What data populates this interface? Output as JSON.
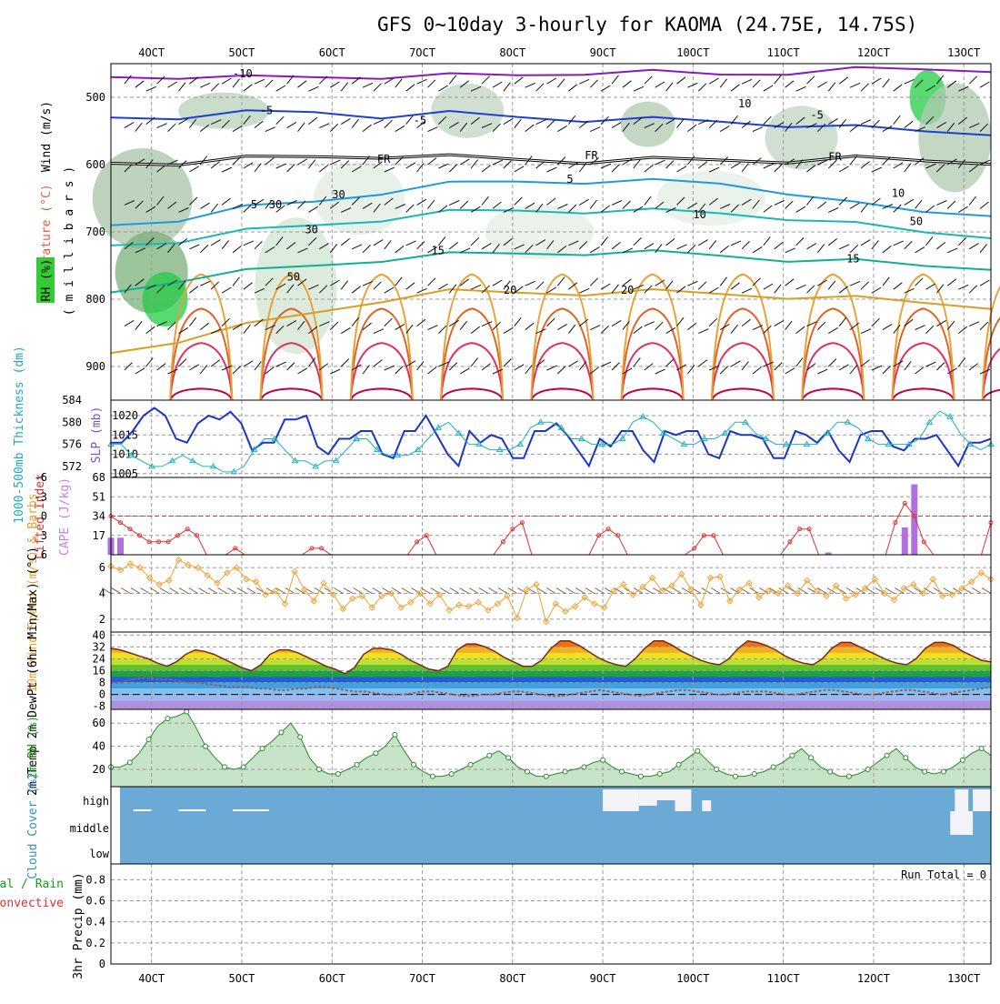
{
  "title": "GFS 0~10day 3-hourly for KAOMA (24.75E, 14.75S)",
  "time_axis": {
    "labels": [
      "4OCT",
      "5OCT",
      "6OCT",
      "7OCT",
      "8OCT",
      "9OCT",
      "10OCT",
      "11OCT",
      "12OCT",
      "13OCT"
    ],
    "start_day": 3.55,
    "end_day": 13.3
  },
  "chart_data": [
    {
      "id": "pressure_time",
      "type": "heatmap",
      "ylabel_parts": [
        "Wind (m/s)",
        "Temperature (°C)",
        "( m i l l i b a r s )",
        "RH (%)"
      ],
      "yticks": [
        500,
        600,
        700,
        800,
        900
      ],
      "ylim": [
        950,
        450
      ],
      "temperature_contour_labels": [
        "-10",
        "-5",
        "-5",
        "-5",
        "FR",
        "FR",
        "FR",
        "5",
        "5",
        "10",
        "15",
        "15",
        "20",
        "20",
        "10",
        "30",
        "30",
        "30",
        "50",
        "50",
        "10"
      ],
      "temperature_levels": [
        {
          "label": "-10",
          "color": "#8a1ab8",
          "p": [
            470,
            468,
            472,
            470,
            468,
            469,
            467,
            462,
            464,
            466,
            462,
            460,
            458,
            458
          ]
        },
        {
          "label": "-5",
          "color": "#1e3fd0",
          "p": [
            530,
            528,
            524,
            522,
            527,
            525,
            529,
            532,
            534,
            536,
            540,
            546,
            550,
            552
          ]
        },
        {
          "label": "FR",
          "color": "#000000",
          "p": [
            598,
            596,
            592,
            588,
            586,
            590,
            592,
            594,
            594,
            593,
            593,
            592,
            594,
            595
          ]
        },
        {
          "label": "5",
          "color": "#1e9bd8",
          "p": [
            690,
            680,
            665,
            655,
            640,
            630,
            625,
            624,
            626,
            628,
            640,
            660,
            670,
            672
          ]
        },
        {
          "label": "10",
          "color": "#19b8b8",
          "p": [
            720,
            712,
            700,
            690,
            680,
            672,
            668,
            668,
            670,
            672,
            678,
            690,
            700,
            705
          ]
        },
        {
          "label": "15",
          "color": "#10b090",
          "p": [
            790,
            770,
            760,
            750,
            740,
            735,
            732,
            730,
            732,
            735,
            740,
            745,
            750,
            752
          ]
        },
        {
          "label": "20",
          "color": "#d8a020",
          "p": [
            880,
            860,
            840,
            820,
            800,
            790,
            790,
            790,
            790,
            792,
            795,
            800,
            805,
            810
          ]
        }
      ],
      "rh_shading": "green"
    },
    {
      "id": "thickness_slp",
      "type": "line",
      "ylabel_left": "1000-500mb Thickness (dm)",
      "ylabel_right": "SLP (mb)",
      "yticks_left": [
        572,
        576,
        580,
        584
      ],
      "ylim_left": [
        570,
        584
      ],
      "yticks_right": [
        1005,
        1010,
        1015,
        1020
      ],
      "ylim_right": [
        1004,
        1024
      ],
      "series": [
        {
          "name": "SLP (mb)",
          "color": "#1836c8",
          "axis": "right",
          "values": [
            1013,
            1013,
            1016,
            1020,
            1022,
            1020,
            1014,
            1013,
            1018,
            1020,
            1019,
            1021,
            1018,
            1011,
            1013,
            1013,
            1019,
            1019,
            1020,
            1012,
            1010,
            1014,
            1014,
            1016,
            1016,
            1010,
            1009,
            1016,
            1016,
            1020,
            1015,
            1010,
            1007,
            1016,
            1013,
            1015,
            1014,
            1009,
            1009,
            1016,
            1016,
            1018,
            1015,
            1011,
            1007,
            1014,
            1012,
            1016,
            1016,
            1011,
            1008,
            1016,
            1015,
            1016,
            1016,
            1010,
            1009,
            1016,
            1015,
            1015,
            1014,
            1009,
            1009,
            1016,
            1015,
            1013,
            1016,
            1011,
            1008,
            1015,
            1016,
            1016,
            1012,
            1011,
            1014,
            1014,
            1015,
            1011,
            1007,
            1013,
            1013,
            1014
          ]
        },
        {
          "name": "1000-500mb Thickness (dm)",
          "color": "#20b0c0",
          "axis": "left",
          "values": [
            576,
            576,
            574,
            573,
            572,
            572,
            573,
            574,
            573,
            572,
            572,
            571,
            571,
            572,
            575,
            577,
            577,
            575,
            573,
            573,
            572,
            573,
            573,
            575,
            577,
            577,
            575,
            574,
            574,
            574,
            575,
            577,
            579,
            580,
            578,
            576,
            576,
            575,
            575,
            575,
            576,
            579,
            580,
            580,
            579,
            577,
            577,
            576,
            576,
            576,
            577,
            580,
            581,
            580,
            578,
            577,
            576,
            576,
            577,
            577,
            578,
            580,
            580,
            578,
            577,
            576,
            576,
            576,
            576,
            576,
            578,
            580,
            580,
            579,
            577,
            576,
            576,
            576,
            576,
            577,
            580,
            582,
            581,
            578,
            576,
            575,
            576
          ]
        }
      ]
    },
    {
      "id": "li_cape",
      "type": "bar",
      "ylabel_left": "Lifted Index",
      "ylabel_right": "CAPE (J/kg)",
      "yticks_left": [
        -6,
        -3,
        0,
        3,
        6
      ],
      "ylim_left": [
        6,
        -6
      ],
      "yticks_right": [
        17,
        34,
        51,
        68
      ],
      "ylim_right": [
        0,
        68
      ],
      "series": [
        {
          "name": "Lifted Index",
          "color": "#e03030",
          "values": [
            0,
            1,
            2,
            3,
            4,
            4,
            4,
            3,
            2,
            3,
            6,
            6,
            6,
            5,
            6,
            6,
            6,
            6,
            6,
            6,
            6,
            5,
            5,
            6,
            6,
            6,
            6,
            6,
            6,
            6,
            6,
            6,
            4,
            3,
            6,
            6,
            6,
            6,
            6,
            6,
            6,
            4,
            2,
            1,
            6,
            6,
            6,
            6,
            6,
            6,
            6,
            3,
            2,
            3,
            6,
            6,
            6,
            6,
            6,
            6,
            6,
            5,
            3,
            3,
            6,
            6,
            6,
            6,
            6,
            6,
            6,
            4,
            2,
            2,
            6,
            6,
            6,
            6,
            6,
            6,
            6,
            6,
            1,
            -2,
            0,
            4,
            6,
            6,
            6,
            6,
            6,
            6,
            1
          ]
        },
        {
          "name": "CAPE (J/kg)",
          "color": "#b070e0",
          "values": [
            15,
            15,
            0,
            0,
            0,
            0,
            0,
            0,
            0,
            0,
            0,
            0,
            0,
            0,
            0,
            0,
            0,
            0,
            0,
            0,
            0,
            0,
            0,
            0,
            0,
            0,
            0,
            0,
            0,
            0,
            0,
            0,
            0,
            0,
            0,
            0,
            0,
            0,
            0,
            0,
            0,
            0,
            0,
            0,
            0,
            0,
            0,
            0,
            0,
            0,
            0,
            0,
            0,
            0,
            0,
            0,
            0,
            0,
            0,
            0,
            0,
            0,
            0,
            0,
            0,
            0,
            0,
            0,
            0,
            0,
            0,
            0,
            0,
            0,
            0,
            2,
            0,
            0,
            0,
            0,
            0,
            0,
            0,
            24,
            62,
            0,
            0,
            0,
            0,
            0,
            0,
            0,
            0
          ]
        }
      ]
    },
    {
      "id": "wind10m",
      "type": "line",
      "ylabel": "10m Wind Speed (m/s) & Barbs",
      "yticks": [
        2,
        4,
        6
      ],
      "ylim": [
        1,
        7
      ],
      "series": [
        {
          "name": "10m Wind Speed",
          "color": "#f0a030",
          "values": [
            6.1,
            5.8,
            6.3,
            6.0,
            5.2,
            4.7,
            5.0,
            6.6,
            6.2,
            6.0,
            5.4,
            4.8,
            5.6,
            6.0,
            5.1,
            4.9,
            3.9,
            4.2,
            3.2,
            5.7,
            4.3,
            3.4,
            4.8,
            3.9,
            2.8,
            3.6,
            3.8,
            2.9,
            3.8,
            4.0,
            2.9,
            3.3,
            4.0,
            3.2,
            3.9,
            2.7,
            3.1,
            3.0,
            3.3,
            2.7,
            3.2,
            3.8,
            2.1,
            4.3,
            4.7,
            1.8,
            3.2,
            2.6,
            3.0,
            3.7,
            3.2,
            2.9,
            4.2,
            4.7,
            3.9,
            4.5,
            5.2,
            4.2,
            4.6,
            5.5,
            4.3,
            3.1,
            5.2,
            5.3,
            3.4,
            4.3,
            4.8,
            3.7,
            4.2,
            4.0,
            4.6,
            4.0,
            5.0,
            4.2,
            3.8,
            4.6,
            3.6,
            3.9,
            4.4,
            5.1,
            4.0,
            3.5,
            4.4,
            4.7,
            4.0,
            5.1,
            3.8,
            3.9,
            4.4,
            4.9,
            5.6,
            5.1
          ]
        }
      ]
    },
    {
      "id": "temp2m",
      "type": "area",
      "ylabel": "2m Temp 2m DewPt (6hr Min/Max) (°C)",
      "yticks": [
        -8,
        0,
        8,
        16,
        24,
        32,
        40
      ],
      "ylim": [
        -10,
        42
      ],
      "series": [
        {
          "name": "2m Temp",
          "color": "#7a2a10",
          "values": [
            31,
            30,
            28,
            26,
            24,
            21,
            19,
            22,
            27,
            30,
            29,
            27,
            24,
            21,
            18,
            16,
            20,
            27,
            30,
            30,
            28,
            25,
            22,
            19,
            17,
            14,
            18,
            27,
            31,
            31,
            30,
            27,
            23,
            20,
            17,
            16,
            19,
            30,
            34,
            34,
            32,
            29,
            25,
            22,
            19,
            19,
            23,
            31,
            36,
            36,
            33,
            29,
            25,
            22,
            20,
            19,
            24,
            31,
            36,
            36,
            33,
            29,
            26,
            23,
            21,
            20,
            24,
            31,
            36,
            35,
            33,
            30,
            26,
            23,
            21,
            20,
            24,
            31,
            35,
            35,
            32,
            29,
            26,
            23,
            21,
            20,
            24,
            31,
            35,
            35,
            33,
            29,
            26,
            23,
            22
          ]
        },
        {
          "name": "2m DewPt",
          "color": "#906060",
          "values": [
            8,
            8,
            10,
            11,
            11,
            10,
            10,
            9,
            8,
            8,
            7,
            6,
            5,
            5,
            5,
            4,
            4,
            3,
            3,
            4,
            4,
            5,
            5,
            4,
            3,
            2,
            2,
            1,
            0,
            0,
            0,
            1,
            2,
            2,
            1,
            0,
            -1,
            -1,
            0,
            0,
            1,
            2,
            2,
            1,
            0,
            -1,
            -1,
            0,
            1,
            2,
            3,
            2,
            1,
            0,
            -1,
            0,
            1,
            2,
            3,
            3,
            2,
            1,
            0,
            0,
            1,
            2,
            2,
            2,
            1,
            0,
            0,
            1,
            2,
            3,
            3,
            2,
            1,
            0,
            0,
            1,
            2,
            3,
            3,
            2,
            1,
            0,
            1,
            2,
            3,
            4,
            5
          ]
        }
      ]
    },
    {
      "id": "rh2m",
      "type": "area",
      "ylabel": "2m RH (%)",
      "yticks": [
        20,
        40,
        60
      ],
      "ylim": [
        5,
        72
      ],
      "series": [
        {
          "name": "2m RH",
          "color": "#2a8a2a",
          "values": [
            22,
            22,
            26,
            34,
            46,
            58,
            64,
            66,
            70,
            56,
            40,
            30,
            22,
            20,
            22,
            30,
            38,
            44,
            52,
            60,
            48,
            30,
            20,
            16,
            16,
            20,
            24,
            30,
            34,
            40,
            50,
            36,
            24,
            18,
            14,
            14,
            16,
            20,
            24,
            28,
            32,
            36,
            30,
            22,
            18,
            14,
            14,
            16,
            18,
            20,
            22,
            26,
            28,
            22,
            18,
            16,
            14,
            14,
            16,
            18,
            24,
            30,
            36,
            28,
            20,
            16,
            14,
            14,
            16,
            18,
            22,
            26,
            32,
            38,
            30,
            22,
            18,
            14,
            14,
            16,
            20,
            26,
            32,
            38,
            30,
            22,
            18,
            16,
            18,
            22,
            28,
            34,
            38,
            32
          ]
        }
      ]
    },
    {
      "id": "cloud",
      "type": "heatmap",
      "ylabel": "Cloud Cover (%)",
      "row_labels": [
        "high",
        "middle",
        "low"
      ],
      "background_color": "#6aaad4",
      "cloud_color": "#f4f4f8"
    },
    {
      "id": "precip",
      "type": "bar",
      "ylabel": "3hr Precip (mm)",
      "left_label_parts": [
        "Total / Rain",
        "Convective"
      ],
      "yticks": [
        0,
        0.2,
        0.4,
        0.6,
        0.8
      ],
      "ylim": [
        0,
        0.95
      ],
      "run_total": "Run Total = 0"
    }
  ]
}
